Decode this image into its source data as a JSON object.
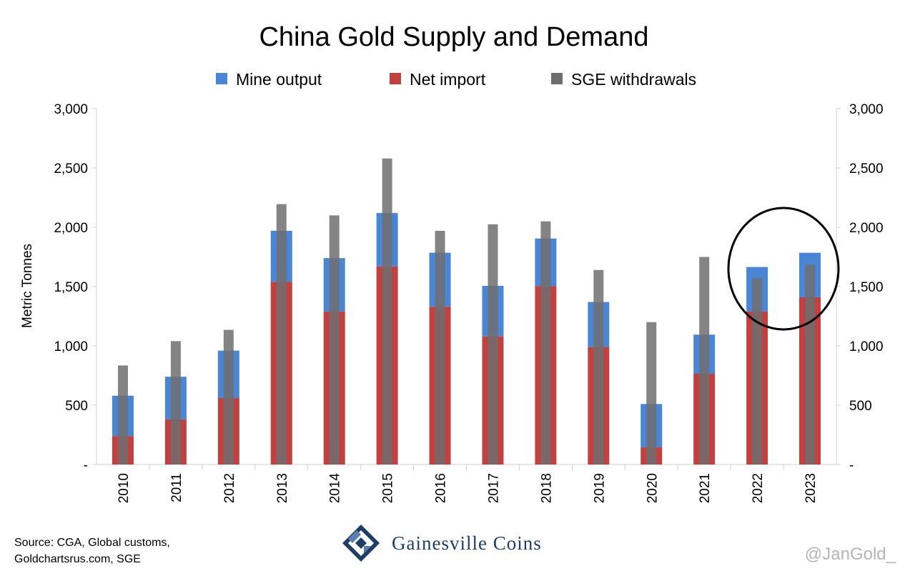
{
  "chart_data": {
    "type": "bar",
    "title": "China Gold Supply and Demand",
    "ylabel": "Metric Tonnes",
    "xlabel": "",
    "categories": [
      "2010",
      "2011",
      "2012",
      "2013",
      "2014",
      "2015",
      "2016",
      "2017",
      "2018",
      "2019",
      "2020",
      "2021",
      "2022",
      "2023"
    ],
    "series": [
      {
        "name": "Mine output",
        "color": "#4a86d4",
        "values": [
          340,
          360,
          400,
          430,
          450,
          450,
          455,
          426,
          400,
          380,
          365,
          330,
          375,
          375
        ]
      },
      {
        "name": "Net import",
        "color": "#c0413f",
        "values": [
          240,
          380,
          560,
          1540,
          1290,
          1670,
          1330,
          1080,
          1505,
          990,
          145,
          765,
          1290,
          1410
        ]
      },
      {
        "name": "SGE withdrawals",
        "color": "#6e6e6e",
        "values": [
          835,
          1040,
          1135,
          2195,
          2100,
          2580,
          1970,
          2025,
          2050,
          1640,
          1200,
          1750,
          1570,
          1685
        ]
      }
    ],
    "stacked_series": [
      "Net import",
      "Mine output"
    ],
    "ylim": [
      0,
      3000
    ],
    "yticks": [
      0,
      500,
      1000,
      1500,
      2000,
      2500,
      3000
    ],
    "ytick_labels": [
      "-",
      "500",
      "1,000",
      "1,500",
      "2,000",
      "2,500",
      "3,000"
    ],
    "secondary_y_axis": true,
    "grid": false,
    "legend_position": "top-center",
    "annotation": {
      "type": "ellipse",
      "categories": [
        "2022",
        "2023"
      ],
      "color": "#000000"
    }
  },
  "source_text": [
    "Source: CGA, Global customs,",
    "Goldchartsrus.com, SGE"
  ],
  "brand": {
    "name": "Gainesville Coins",
    "logo_icon": "gainesville-coins-logo-icon",
    "color": "#1f3e66"
  },
  "watermark": "@JanGold_"
}
